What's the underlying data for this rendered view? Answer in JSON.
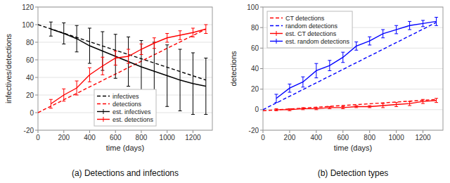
{
  "chart_data": [
    {
      "type": "line",
      "title": "(a) Detections and infections",
      "xlabel": "time (days)",
      "ylabel": "infectives/detections",
      "xlim": [
        0,
        1350
      ],
      "xticks": [
        0,
        200,
        400,
        600,
        800,
        1000,
        1200
      ],
      "ylim": [
        -20,
        120
      ],
      "yticks": [
        -20,
        0,
        20,
        40,
        60,
        80,
        100,
        120
      ],
      "grid": true,
      "legend": "bottom",
      "series": [
        {
          "name": "infectives",
          "color": "black",
          "line_style": "dashed",
          "x": [
            0,
            1300
          ],
          "values": [
            100,
            37
          ]
        },
        {
          "name": "detections",
          "color": "red",
          "line_style": "dashed",
          "x": [
            0,
            1300
          ],
          "values": [
            0,
            95
          ]
        },
        {
          "name": "est. infectives",
          "color": "black",
          "line_style": "solid",
          "x": [
            100,
            200,
            300,
            400,
            500,
            600,
            700,
            800,
            900,
            1000,
            1100,
            1200,
            1300
          ],
          "values": [
            95,
            90,
            84,
            76,
            70,
            64,
            58,
            52,
            47,
            42,
            37,
            33,
            30
          ],
          "errors": [
            8,
            12,
            15,
            20,
            22,
            25,
            28,
            30,
            33,
            35,
            35,
            35,
            32
          ]
        },
        {
          "name": "est. detections",
          "color": "red",
          "line_style": "solid",
          "x": [
            100,
            200,
            300,
            400,
            500,
            600,
            700,
            800,
            900,
            1000,
            1100,
            1200,
            1300
          ],
          "values": [
            10,
            20,
            28,
            43,
            53,
            62,
            64,
            72,
            79,
            85,
            88,
            91,
            95
          ],
          "errors": [
            5,
            7,
            8,
            8,
            10,
            8,
            8,
            6,
            6,
            5,
            5,
            5,
            5
          ]
        }
      ]
    },
    {
      "type": "line",
      "title": "(b) Detection types",
      "xlabel": "time (days)",
      "ylabel": "detections",
      "xlim": [
        0,
        1350
      ],
      "xticks": [
        0,
        200,
        400,
        600,
        800,
        1000,
        1200
      ],
      "ylim": [
        -20,
        100
      ],
      "yticks": [
        -20,
        0,
        20,
        40,
        60,
        80,
        100
      ],
      "grid": true,
      "legend": "top-left",
      "series": [
        {
          "name": "CT detections",
          "color": "red",
          "line_style": "dashed",
          "x": [
            0,
            1300
          ],
          "values": [
            -1,
            10
          ]
        },
        {
          "name": "random detections",
          "color": "blue",
          "line_style": "dashed",
          "x": [
            0,
            1300
          ],
          "values": [
            0,
            85
          ]
        },
        {
          "name": "est. CT detections",
          "color": "red",
          "line_style": "solid",
          "x": [
            100,
            200,
            300,
            400,
            500,
            600,
            700,
            800,
            900,
            1000,
            1100,
            1200,
            1300
          ],
          "values": [
            0,
            0,
            1,
            1,
            2,
            2,
            3,
            3,
            4,
            5,
            6,
            8,
            9
          ],
          "errors": [
            1,
            1,
            1,
            1,
            1,
            1,
            1,
            1,
            2,
            2,
            2,
            2,
            2
          ]
        },
        {
          "name": "est. random detections",
          "color": "blue",
          "line_style": "solid",
          "x": [
            100,
            200,
            300,
            400,
            500,
            600,
            700,
            800,
            900,
            1000,
            1100,
            1200,
            1300
          ],
          "values": [
            11,
            21,
            27,
            38,
            43,
            51,
            62,
            67,
            74,
            78,
            82,
            84,
            86
          ],
          "errors": [
            4,
            4,
            5,
            7,
            5,
            5,
            4,
            4,
            4,
            4,
            4,
            3,
            4
          ]
        }
      ]
    }
  ]
}
